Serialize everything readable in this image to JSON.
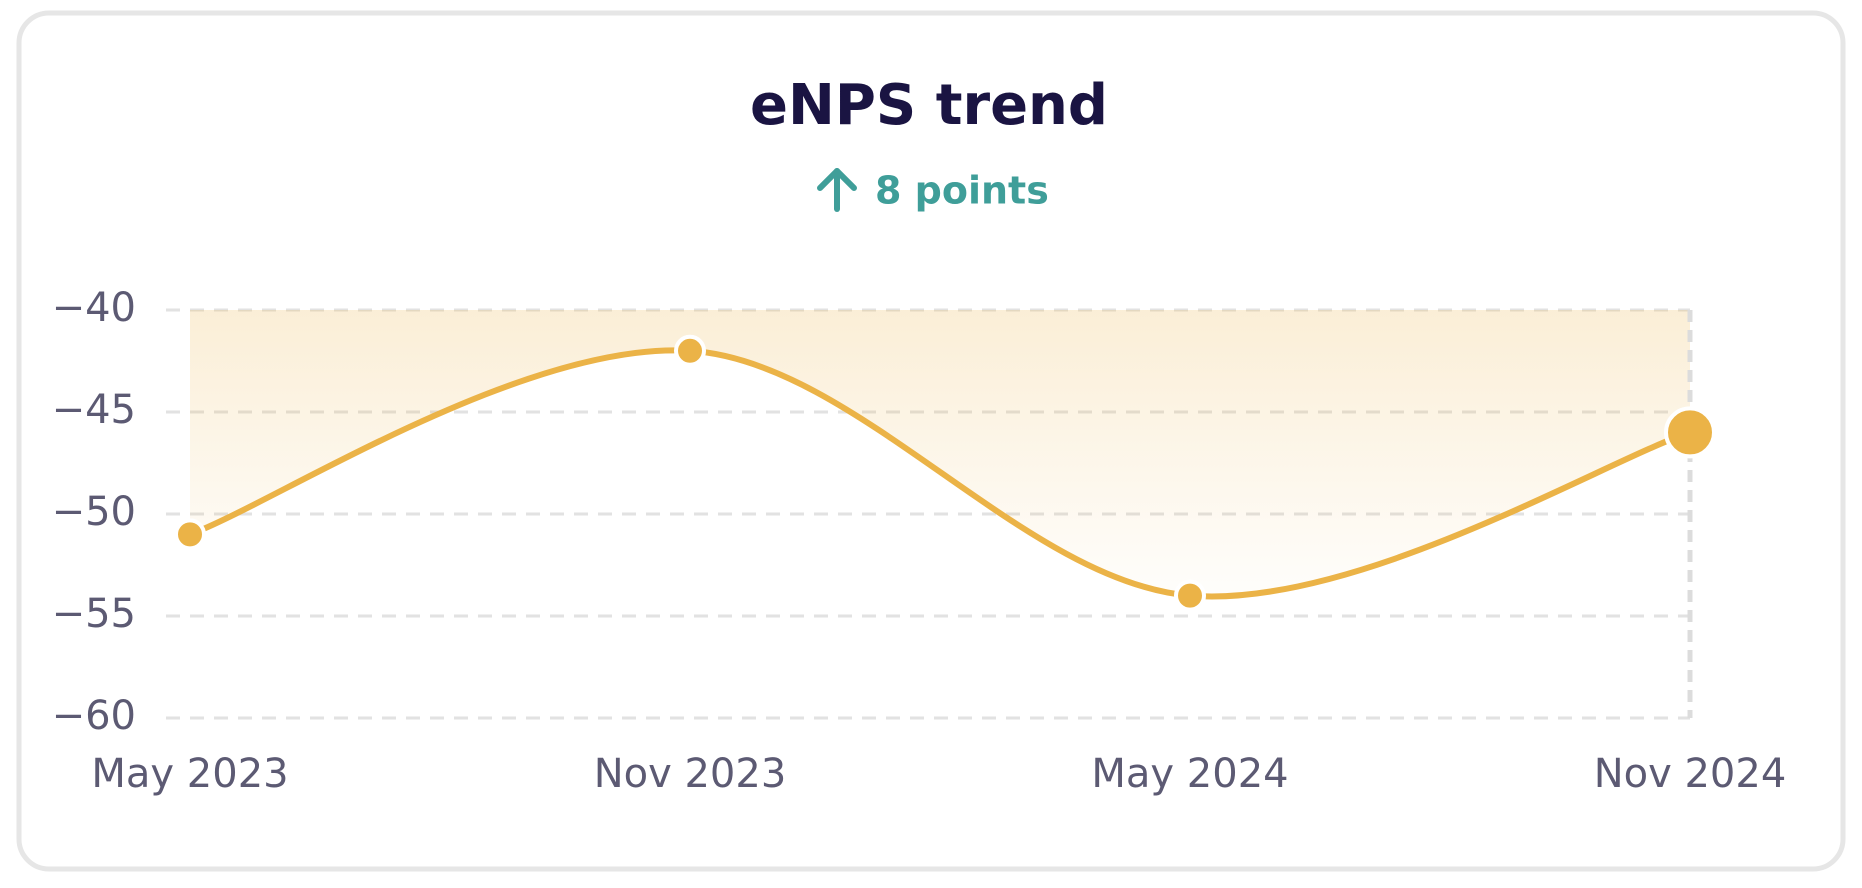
{
  "chart_data": {
    "type": "line",
    "title": "eNPS trend",
    "subtitle": "8 points",
    "categories": [
      "May 2023",
      "Nov 2023",
      "May 2024",
      "Nov 2024"
    ],
    "values": [
      -51,
      -42,
      -54,
      -46
    ],
    "color": "#ebb347",
    "ylim": [
      -60,
      -40
    ],
    "yticks": [
      {
        "value": -60,
        "label": "−60"
      },
      {
        "value": -55,
        "label": "−55"
      },
      {
        "value": -50,
        "label": "−50"
      },
      {
        "value": -45,
        "label": "−45"
      },
      {
        "value": -40,
        "label": "−40"
      }
    ],
    "grid": true
  }
}
